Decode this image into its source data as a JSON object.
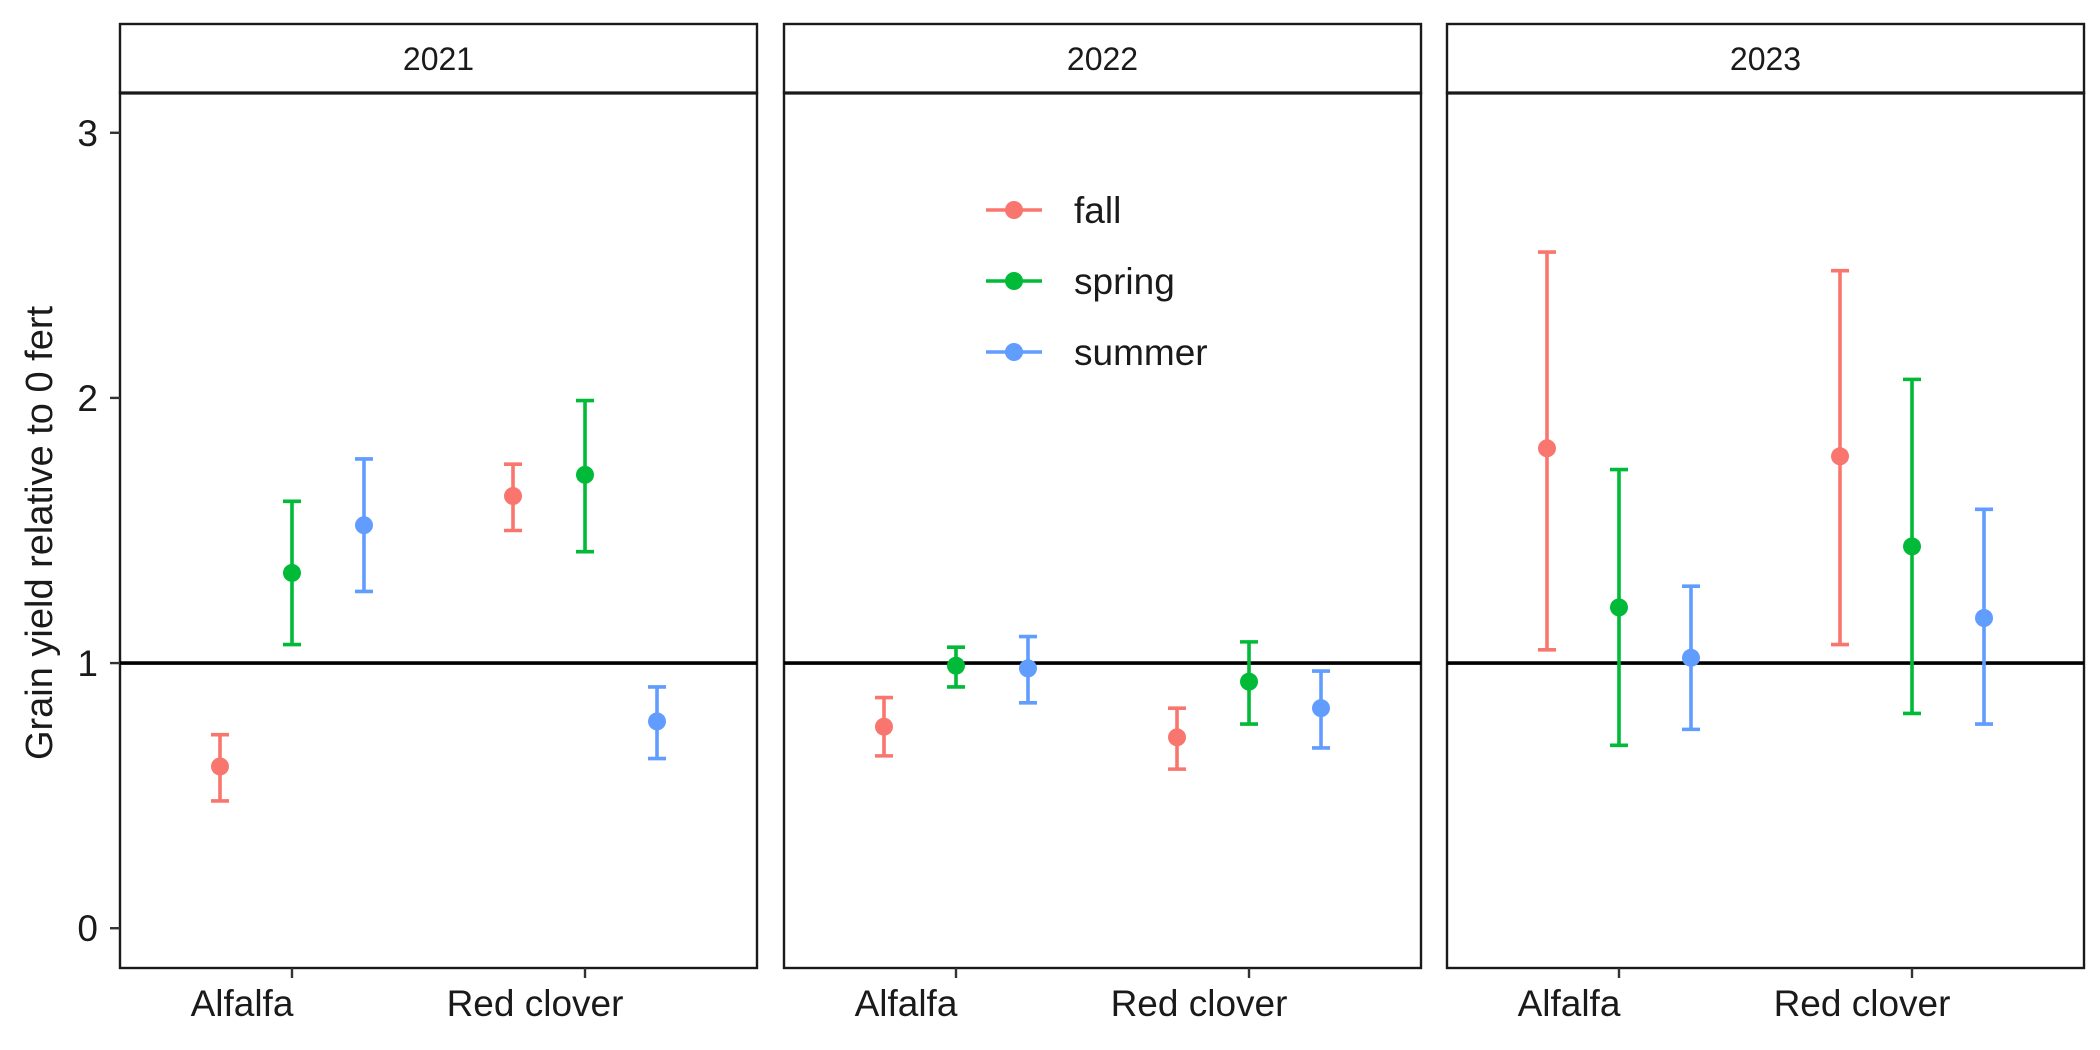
{
  "chart_data": {
    "type": "scatter",
    "ylabel": "Grain yield relative to 0 fert",
    "xlabel": "",
    "ylim": [
      -0.15,
      3.15
    ],
    "yticks": [
      0,
      1,
      2,
      3
    ],
    "reference_line": 1,
    "grid": false,
    "legend_position": "inside-top-center",
    "categories": [
      "Alfalfa",
      "Red clover"
    ],
    "series": [
      {
        "name": "fall",
        "color": "#F8766D"
      },
      {
        "name": "spring",
        "color": "#00BA38"
      },
      {
        "name": "summer",
        "color": "#619CFF"
      }
    ],
    "panels": [
      {
        "title": "2021",
        "points": [
          {
            "category": "Alfalfa",
            "series": "fall",
            "y": 0.61,
            "ymin": 0.48,
            "ymax": 0.73
          },
          {
            "category": "Alfalfa",
            "series": "spring",
            "y": 1.34,
            "ymin": 1.07,
            "ymax": 1.61
          },
          {
            "category": "Alfalfa",
            "series": "summer",
            "y": 1.52,
            "ymin": 1.27,
            "ymax": 1.77
          },
          {
            "category": "Red clover",
            "series": "fall",
            "y": 1.63,
            "ymin": 1.5,
            "ymax": 1.75
          },
          {
            "category": "Red clover",
            "series": "spring",
            "y": 1.71,
            "ymin": 1.42,
            "ymax": 1.99
          },
          {
            "category": "Red clover",
            "series": "summer",
            "y": 0.78,
            "ymin": 0.64,
            "ymax": 0.91
          }
        ]
      },
      {
        "title": "2022",
        "points": [
          {
            "category": "Alfalfa",
            "series": "fall",
            "y": 0.76,
            "ymin": 0.65,
            "ymax": 0.87
          },
          {
            "category": "Alfalfa",
            "series": "spring",
            "y": 0.99,
            "ymin": 0.91,
            "ymax": 1.06
          },
          {
            "category": "Alfalfa",
            "series": "summer",
            "y": 0.98,
            "ymin": 0.85,
            "ymax": 1.1
          },
          {
            "category": "Red clover",
            "series": "fall",
            "y": 0.72,
            "ymin": 0.6,
            "ymax": 0.83
          },
          {
            "category": "Red clover",
            "series": "spring",
            "y": 0.93,
            "ymin": 0.77,
            "ymax": 1.08
          },
          {
            "category": "Red clover",
            "series": "summer",
            "y": 0.83,
            "ymin": 0.68,
            "ymax": 0.97
          }
        ]
      },
      {
        "title": "2023",
        "points": [
          {
            "category": "Alfalfa",
            "series": "fall",
            "y": 1.81,
            "ymin": 1.05,
            "ymax": 2.55
          },
          {
            "category": "Alfalfa",
            "series": "spring",
            "y": 1.21,
            "ymin": 0.69,
            "ymax": 1.73
          },
          {
            "category": "Alfalfa",
            "series": "summer",
            "y": 1.02,
            "ymin": 0.75,
            "ymax": 1.29
          },
          {
            "category": "Red clover",
            "series": "fall",
            "y": 1.78,
            "ymin": 1.07,
            "ymax": 2.48
          },
          {
            "category": "Red clover",
            "series": "spring",
            "y": 1.44,
            "ymin": 0.81,
            "ymax": 2.07
          },
          {
            "category": "Red clover",
            "series": "summer",
            "y": 1.17,
            "ymin": 0.77,
            "ymax": 1.58
          }
        ]
      }
    ]
  }
}
